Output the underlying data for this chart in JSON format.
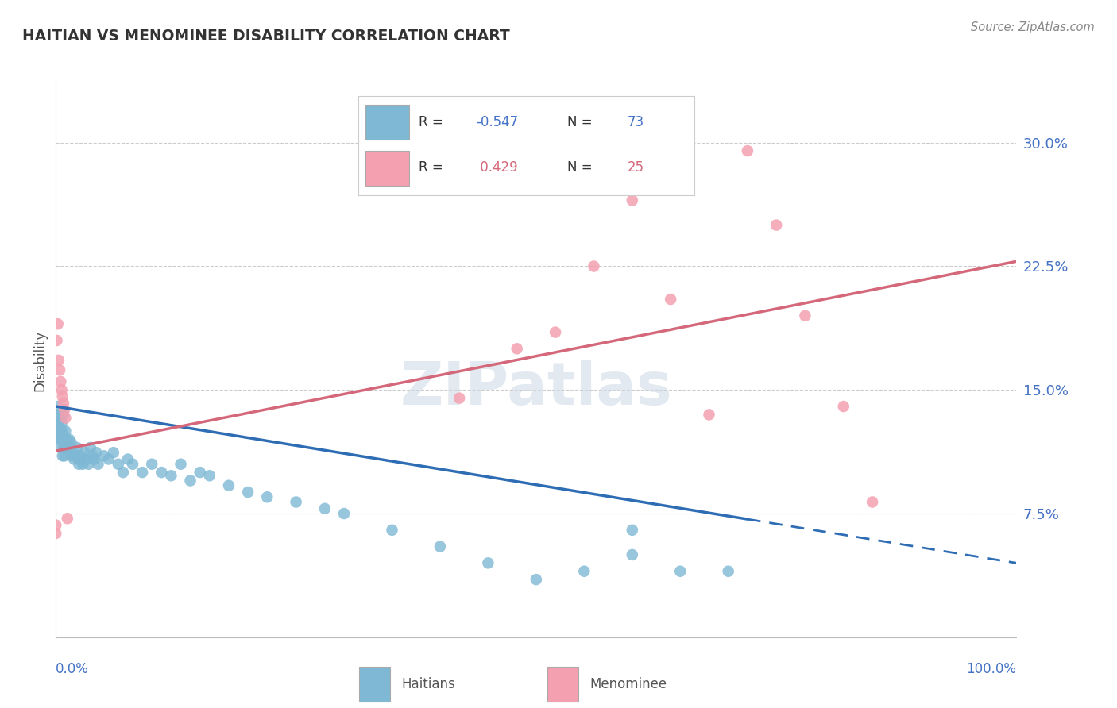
{
  "title": "HAITIAN VS MENOMINEE DISABILITY CORRELATION CHART",
  "source": "Source: ZipAtlas.com",
  "ylabel": "Disability",
  "ytick_vals": [
    0.075,
    0.15,
    0.225,
    0.3
  ],
  "ytick_labels": [
    "7.5%",
    "15.0%",
    "22.5%",
    "30.0%"
  ],
  "haitians_color": "#7eb8d4",
  "menominee_color": "#f4a0b0",
  "haitians_line_color": "#2e6db4",
  "menominee_line_color": "#d4687a",
  "legend_r1": "-0.547",
  "legend_n1": "73",
  "legend_r2": " 0.429",
  "legend_n2": "25",
  "xlim": [
    0.0,
    1.0
  ],
  "ylim": [
    0.0,
    0.335
  ],
  "haitians_x": [
    0.002,
    0.003,
    0.003,
    0.004,
    0.004,
    0.005,
    0.005,
    0.005,
    0.006,
    0.006,
    0.007,
    0.007,
    0.008,
    0.008,
    0.009,
    0.009,
    0.01,
    0.01,
    0.011,
    0.012,
    0.013,
    0.014,
    0.015,
    0.016,
    0.017,
    0.018,
    0.019,
    0.02,
    0.022,
    0.024,
    0.025,
    0.026,
    0.028,
    0.03,
    0.032,
    0.034,
    0.036,
    0.038,
    0.04,
    0.042,
    0.044,
    0.05,
    0.055,
    0.06,
    0.065,
    0.07,
    0.075,
    0.08,
    0.09,
    0.1,
    0.11,
    0.12,
    0.13,
    0.14,
    0.15,
    0.16,
    0.18,
    0.2,
    0.22,
    0.25,
    0.28,
    0.3,
    0.35,
    0.4,
    0.45,
    0.5,
    0.55,
    0.6,
    0.65,
    0.7,
    0.001,
    0.001,
    0.6
  ],
  "haitians_y": [
    0.14,
    0.125,
    0.13,
    0.12,
    0.135,
    0.125,
    0.12,
    0.115,
    0.13,
    0.12,
    0.125,
    0.11,
    0.135,
    0.115,
    0.12,
    0.11,
    0.125,
    0.115,
    0.12,
    0.115,
    0.115,
    0.12,
    0.115,
    0.118,
    0.11,
    0.112,
    0.108,
    0.11,
    0.115,
    0.105,
    0.108,
    0.11,
    0.105,
    0.112,
    0.108,
    0.105,
    0.115,
    0.11,
    0.108,
    0.112,
    0.105,
    0.11,
    0.108,
    0.112,
    0.105,
    0.1,
    0.108,
    0.105,
    0.1,
    0.105,
    0.1,
    0.098,
    0.105,
    0.095,
    0.1,
    0.098,
    0.092,
    0.088,
    0.085,
    0.082,
    0.078,
    0.075,
    0.065,
    0.055,
    0.045,
    0.035,
    0.04,
    0.065,
    0.04,
    0.04,
    0.135,
    0.13,
    0.05
  ],
  "menominee_x": [
    0.001,
    0.002,
    0.003,
    0.004,
    0.005,
    0.006,
    0.007,
    0.008,
    0.009,
    0.01,
    0.012,
    0.0,
    0.42,
    0.48,
    0.52,
    0.56,
    0.6,
    0.64,
    0.68,
    0.72,
    0.75,
    0.78,
    0.82,
    0.85,
    0.0
  ],
  "menominee_y": [
    0.18,
    0.19,
    0.168,
    0.162,
    0.155,
    0.15,
    0.146,
    0.142,
    0.138,
    0.133,
    0.072,
    0.063,
    0.145,
    0.175,
    0.185,
    0.225,
    0.265,
    0.205,
    0.135,
    0.295,
    0.25,
    0.195,
    0.14,
    0.082,
    0.068
  ]
}
